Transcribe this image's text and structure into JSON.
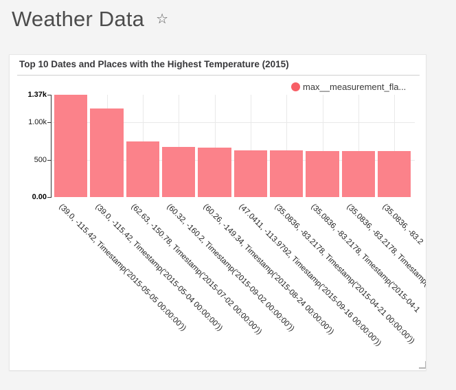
{
  "page": {
    "background": "#f4f4f4",
    "title": "Weather Data"
  },
  "icons": {
    "star": "☆"
  },
  "card": {
    "title": "Top 10 Dates and Places with the Highest Temperature (2015)"
  },
  "chart_data": {
    "type": "bar",
    "title": "Top 10 Dates and Places with the Highest Temperature (2015)",
    "legend": {
      "label": "max__measurement_fla...",
      "marker_color": "#f75f66",
      "position": "top-right"
    },
    "bar_color": "#fb828a",
    "xlabel": "",
    "ylabel": "",
    "ylim": [
      0,
      1370
    ],
    "yticks": [
      {
        "label": "1.37k",
        "value": 1370,
        "bold": true
      },
      {
        "label": "1.00k",
        "value": 1000,
        "bold": false
      },
      {
        "label": "500",
        "value": 500,
        "bold": false
      },
      {
        "label": "0.00",
        "value": 0,
        "bold": true
      }
    ],
    "grid": "light gray horizontal lines at labeled ticks and vertical lines at category centers",
    "x_label_rotation_deg": 45,
    "categories": [
      "(39.0, -115.42, Timestamp('2015-05-05 00:00:00'))",
      "(39.0, -115.42, Timestamp('2015-05-04 00:00:00'))",
      "(62.63, -150.78, Timestamp('2015-07-02 00:00:00'))",
      "(60.32, -160.2, Timestamp('2015-09-02 00:00:00'))",
      "(60.26, -149.34, Timestamp('2015-08-24 00:00:00'))",
      "(47.0411, -113.9792, Timestamp('2015-09-16 00:00:00'))",
      "(35.0836, -83.2178, Timestamp('2015-04-21 00:00:00'))",
      "(35.0836, -83.2178, Timestamp('2015-04-1",
      "(35.0836, -83.2178, Timestamp('2015-0",
      "(35.0836, -83.2"
    ],
    "values": [
      1370,
      1190,
      745,
      672,
      662,
      627,
      622,
      620,
      618,
      612
    ]
  }
}
